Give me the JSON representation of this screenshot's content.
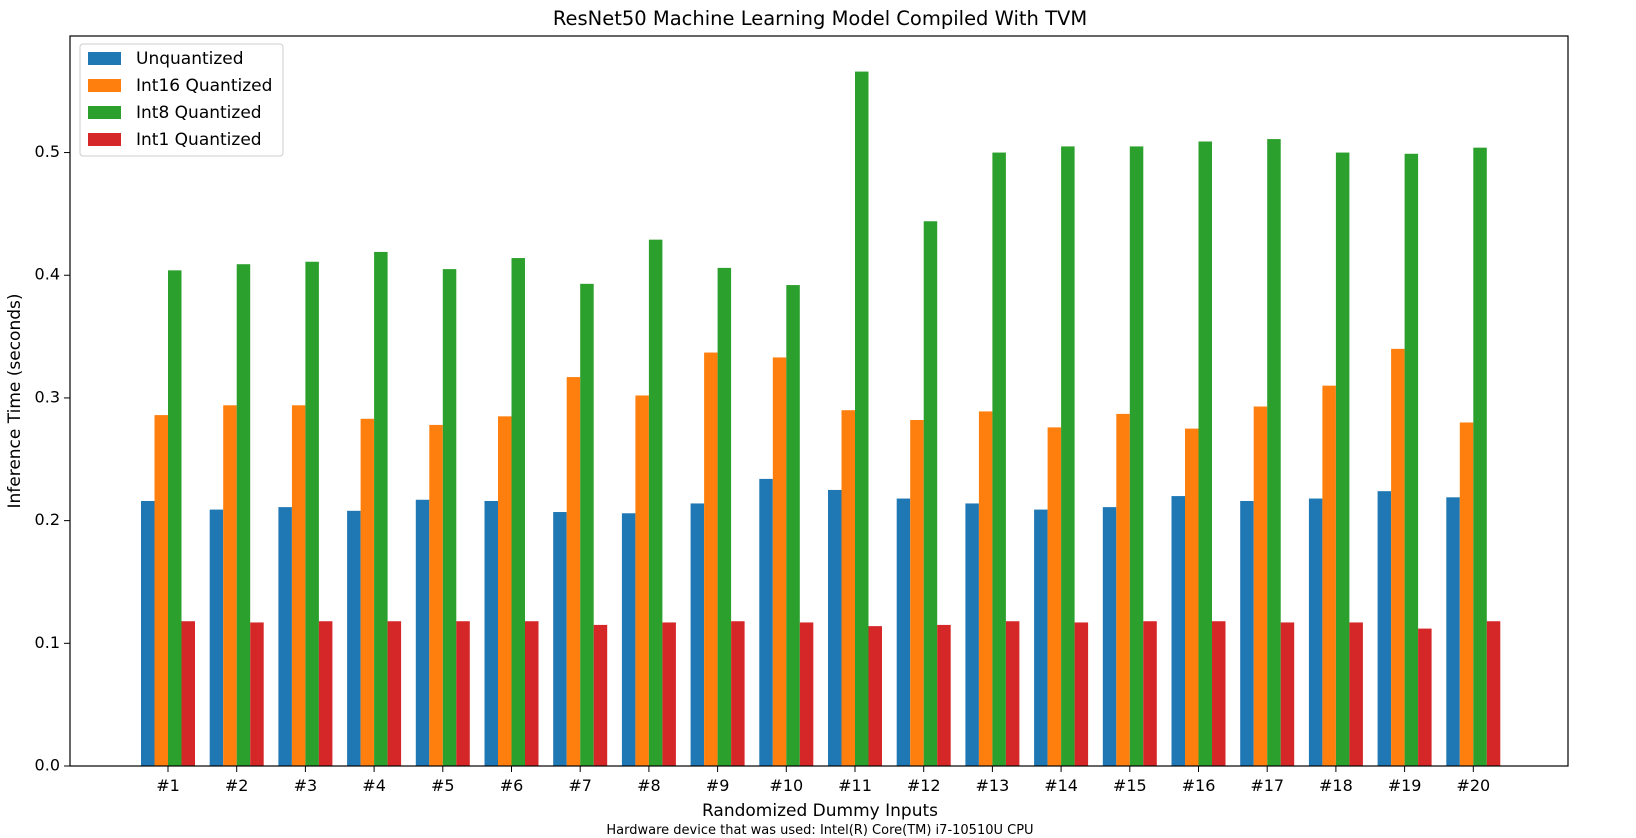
{
  "chart_data": {
    "type": "bar",
    "title": "ResNet50 Machine Learning Model Compiled With TVM",
    "xlabel": "Randomized Dummy Inputs",
    "ylabel": "Inference Time (seconds)",
    "footnote": "Hardware device that was used: Intel(R) Core(TM) i7-10510U CPU",
    "categories": [
      "#1",
      "#2",
      "#3",
      "#4",
      "#5",
      "#6",
      "#7",
      "#8",
      "#9",
      "#10",
      "#11",
      "#12",
      "#13",
      "#14",
      "#15",
      "#16",
      "#17",
      "#18",
      "#19",
      "#20"
    ],
    "ylim": [
      0,
      0.595
    ],
    "yticks": [
      0.0,
      0.1,
      0.2,
      0.3,
      0.4,
      0.5
    ],
    "ytick_labels": [
      "0.0",
      "0.1",
      "0.2",
      "0.3",
      "0.4",
      "0.5"
    ],
    "grid": false,
    "legend_position": "top-left",
    "series": [
      {
        "name": "Unquantized",
        "color": "#1f77b4",
        "values": [
          0.216,
          0.209,
          0.211,
          0.208,
          0.217,
          0.216,
          0.207,
          0.206,
          0.214,
          0.234,
          0.225,
          0.218,
          0.214,
          0.209,
          0.211,
          0.22,
          0.216,
          0.218,
          0.224,
          0.219
        ]
      },
      {
        "name": "Int16 Quantized",
        "color": "#ff7f0e",
        "values": [
          0.286,
          0.294,
          0.294,
          0.283,
          0.278,
          0.285,
          0.317,
          0.302,
          0.337,
          0.333,
          0.29,
          0.282,
          0.289,
          0.276,
          0.287,
          0.275,
          0.293,
          0.31,
          0.34,
          0.28
        ]
      },
      {
        "name": "Int8 Quantized",
        "color": "#2ca02c",
        "values": [
          0.404,
          0.409,
          0.411,
          0.419,
          0.405,
          0.414,
          0.393,
          0.429,
          0.406,
          0.392,
          0.566,
          0.444,
          0.5,
          0.505,
          0.505,
          0.509,
          0.511,
          0.5,
          0.499,
          0.504
        ]
      },
      {
        "name": "Int1 Quantized",
        "color": "#d62728",
        "values": [
          0.118,
          0.117,
          0.118,
          0.118,
          0.118,
          0.118,
          0.115,
          0.117,
          0.118,
          0.117,
          0.114,
          0.115,
          0.118,
          0.117,
          0.118,
          0.118,
          0.117,
          0.117,
          0.112,
          0.118
        ]
      }
    ]
  }
}
